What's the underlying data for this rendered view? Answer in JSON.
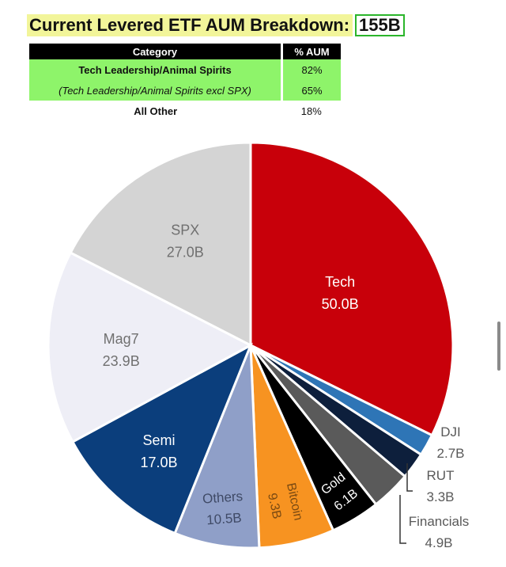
{
  "header": {
    "title": "Current Levered ETF AUM Breakdown:",
    "total": "155B"
  },
  "table": {
    "headers": [
      "Category",
      "% AUM"
    ],
    "rows": [
      {
        "category": "Tech Leadership/Animal Spirits",
        "pct": "82%"
      },
      {
        "category": "(Tech Leadership/Animal Spirits excl SPX)",
        "pct": "65%"
      },
      {
        "category": "All Other",
        "pct": "18%"
      }
    ]
  },
  "colors": {
    "highlight_green": "#8ef46a",
    "title_yellow": "#f2f59a",
    "total_box_border": "#2bb52b"
  },
  "chart_data": {
    "type": "pie",
    "title": "",
    "start": "12 o'clock",
    "direction": "clockwise",
    "slices": [
      {
        "name": "Tech",
        "value": 50.0,
        "label": "50.0B",
        "color": "#c8000a",
        "text_color": "#ffffff"
      },
      {
        "name": "DJI",
        "value": 2.7,
        "label": "2.7B",
        "color": "#2e75b6",
        "text_color": "#595959"
      },
      {
        "name": "RUT",
        "value": 3.3,
        "label": "3.3B",
        "color": "#0d1f3c",
        "text_color": "#595959"
      },
      {
        "name": "Financials",
        "value": 4.9,
        "label": "4.9B",
        "color": "#5a5a5a",
        "text_color": "#595959"
      },
      {
        "name": "Gold",
        "value": 6.1,
        "label": "6.1B",
        "color": "#000000",
        "text_color": "#ffffff"
      },
      {
        "name": "Bitcoin",
        "value": 9.3,
        "label": "9.3B",
        "color": "#f79321",
        "text_color": "#7a4a12"
      },
      {
        "name": "Others",
        "value": 10.5,
        "label": "10.5B",
        "color": "#8f9fc8",
        "text_color": "#3f4a66"
      },
      {
        "name": "Semi",
        "value": 17.0,
        "label": "17.0B",
        "color": "#0b3e7c",
        "text_color": "#ffffff"
      },
      {
        "name": "Mag7",
        "value": 23.9,
        "label": "23.9B",
        "color": "#eeeef6",
        "text_color": "#707070"
      },
      {
        "name": "SPX",
        "value": 27.0,
        "label": "27.0B",
        "color": "#d4d4d4",
        "text_color": "#707070"
      }
    ]
  }
}
